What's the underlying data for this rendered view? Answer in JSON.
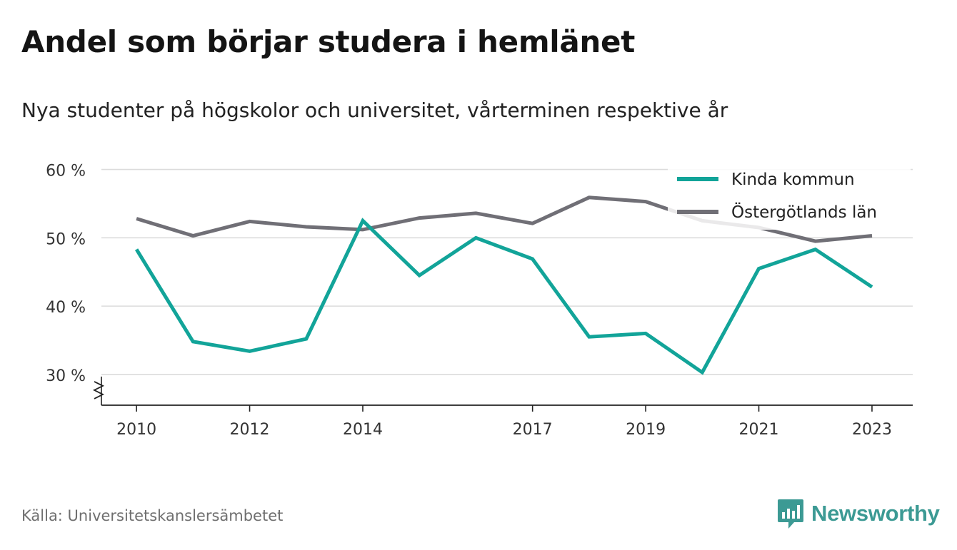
{
  "header": {
    "title": "Andel som börjar studera i hemlänet",
    "subtitle": "Nya studenter på högskolor och universitet, vårterminen respektive år"
  },
  "footer": {
    "source": "Källa: Universitetskanslersämbetet",
    "brand": "Newsworthy",
    "brand_color": "#3c9a94"
  },
  "chart_data": {
    "type": "line",
    "title": "Andel som börjar studera i hemlänet",
    "subtitle": "Nya studenter på högskolor och universitet, vårterminen respektive år",
    "xlabel": "",
    "ylabel": "",
    "x": [
      2010,
      2011,
      2012,
      2013,
      2014,
      2015,
      2016,
      2017,
      2018,
      2019,
      2020,
      2021,
      2022,
      2023
    ],
    "xticks": [
      2010,
      2012,
      2014,
      2017,
      2019,
      2021,
      2023
    ],
    "ylim": [
      25.5,
      61
    ],
    "yticks": [
      30,
      40,
      50,
      60
    ],
    "ytick_labels": [
      "30 %",
      "40 %",
      "50 %",
      "60 %"
    ],
    "axis_break": true,
    "grid": true,
    "legend_position": "top-right",
    "series": [
      {
        "name": "Kinda kommun",
        "color": "#12a499",
        "values": [
          48.3,
          34.8,
          33.4,
          35.2,
          52.5,
          44.5,
          50.0,
          46.9,
          35.5,
          36.0,
          30.3,
          45.5,
          48.3,
          42.8
        ]
      },
      {
        "name": "Östergötlands län",
        "color": "#706f76",
        "values": [
          52.8,
          50.3,
          52.4,
          51.6,
          51.2,
          52.9,
          53.6,
          52.1,
          55.9,
          55.3,
          52.5,
          51.5,
          49.5,
          50.3
        ]
      }
    ]
  }
}
